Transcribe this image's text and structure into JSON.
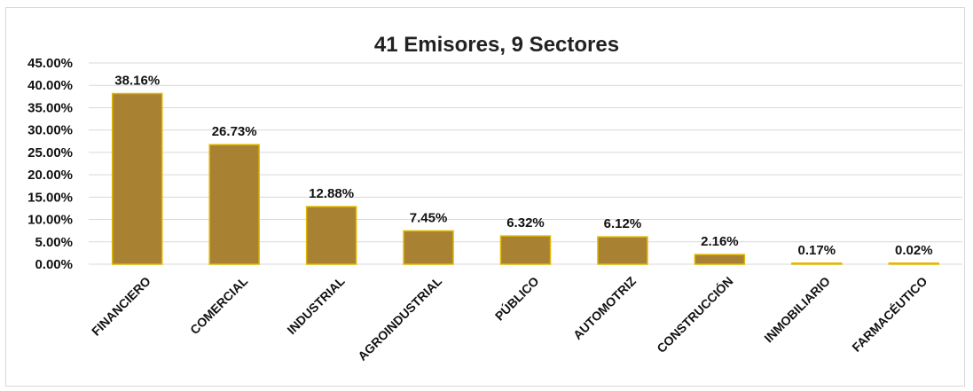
{
  "chart_data": {
    "type": "bar",
    "title": "41 Emisores, 9 Sectores",
    "xlabel": "",
    "ylabel": "",
    "categories": [
      "FINANCIERO",
      "COMERCIAL",
      "INDUSTRIAL",
      "AGROINDUSTRIAL",
      "PÚBLICO",
      "AUTOMOTRIZ",
      "CONSTRUCCIÓN",
      "INMOBILIARIO",
      "FARMACÉUTICO"
    ],
    "values": [
      38.16,
      26.73,
      12.88,
      7.45,
      6.32,
      6.12,
      2.16,
      0.17,
      0.02
    ],
    "data_labels": [
      "38.16%",
      "26.73%",
      "12.88%",
      "7.45%",
      "6.32%",
      "6.12%",
      "2.16%",
      "0.17%",
      "0.02%"
    ],
    "ylim": [
      0,
      45
    ],
    "yticks": [
      0,
      5,
      10,
      15,
      20,
      25,
      30,
      35,
      40,
      45
    ],
    "ytick_labels": [
      "0.00%",
      "5.00%",
      "10.00%",
      "15.00%",
      "20.00%",
      "25.00%",
      "30.00%",
      "35.00%",
      "40.00%",
      "45.00%"
    ],
    "grid": true,
    "legend": "none",
    "colors": {
      "bar_fill": "#a88232",
      "bar_stroke": "#e0b800",
      "grid": "#d9d9d9"
    }
  }
}
